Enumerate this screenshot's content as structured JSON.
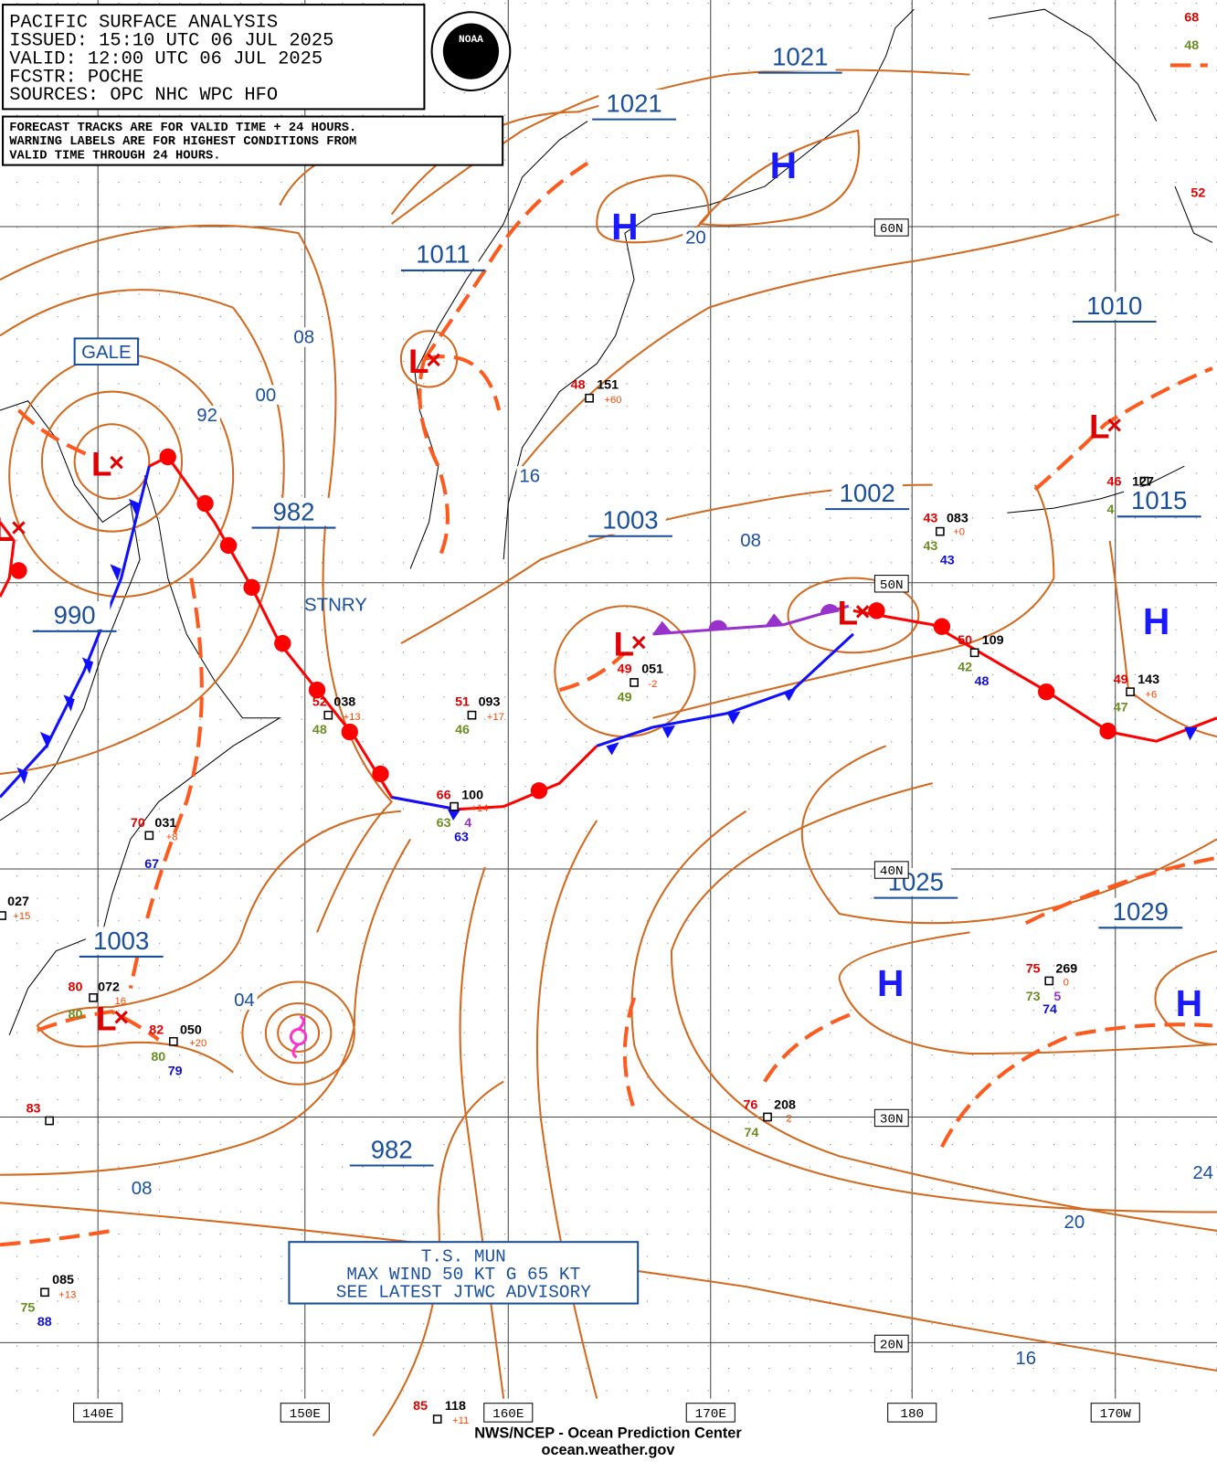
{
  "header": {
    "lines": [
      "PACIFIC SURFACE ANALYSIS",
      "ISSUED: 15:10 UTC 06 JUL 2025",
      "VALID:  12:00 UTC 06 JUL 2025",
      "FCSTR:  POCHE",
      "SOURCES: OPC NHC WPC HFO"
    ],
    "logo": "NOAA"
  },
  "note": [
    "FORECAST TRACKS ARE FOR VALID TIME + 24 HOURS.",
    "WARNING LABELS ARE FOR HIGHEST CONDITIONS FROM",
    "VALID TIME THROUGH 24 HOURS."
  ],
  "pressure_labels": [
    "1021",
    "1021",
    "1011",
    "1010",
    "982",
    "1002",
    "1003",
    "1015",
    "990",
    "1025",
    "1029",
    "1003",
    "982"
  ],
  "isobar_labels": [
    "08",
    "00",
    "92",
    "16",
    "08",
    "20",
    "04",
    "08",
    "20",
    "16",
    "24"
  ],
  "highs": [
    "H",
    "H",
    "H",
    "H",
    "H"
  ],
  "lows": [
    "L",
    "L",
    "L",
    "L",
    "L",
    "L",
    "L"
  ],
  "warnings": {
    "gale": "GALE",
    "stationary": "STNRY"
  },
  "grid_labels": {
    "longitude": [
      "140E",
      "150E",
      "160E",
      "170E",
      "180",
      "170W"
    ],
    "latitude": [
      "60N",
      "50N",
      "40N",
      "30N",
      "20N"
    ]
  },
  "stations": [
    [
      "48",
      "151",
      "+60"
    ],
    [
      "52",
      "038",
      "+13",
      "48"
    ],
    [
      "51",
      "093",
      "+17",
      "46"
    ],
    [
      "49",
      "051",
      "-2",
      "49"
    ],
    [
      "43",
      "083",
      "+0",
      "43",
      "43"
    ],
    [
      "50",
      "109",
      "42",
      "48"
    ],
    [
      "49",
      "143",
      "+6",
      "47"
    ],
    [
      "46",
      "127",
      "4"
    ],
    [
      "66",
      "100",
      "+14",
      "63",
      "4",
      "63"
    ],
    [
      "70",
      "031",
      "+8",
      "67"
    ],
    [
      "027",
      "+15"
    ],
    [
      "80",
      "072",
      "16",
      "80"
    ],
    [
      "82",
      "050",
      "+20",
      "80",
      "79"
    ],
    [
      "83"
    ],
    [
      "085",
      "+13",
      "75",
      "88"
    ],
    [
      "76",
      "208",
      "2",
      "74"
    ],
    [
      "75",
      "269",
      "0",
      "73",
      "5",
      "74"
    ],
    [
      "85",
      "118",
      "+11"
    ],
    [
      "68",
      "48"
    ],
    [
      "52"
    ]
  ],
  "storm_box": [
    "T.S. MUN",
    "MAX WIND 50 KT G 65 KT",
    "SEE LATEST JTWC ADVISORY"
  ],
  "footer": [
    "NWS/NCEP - Ocean Prediction Center",
    "ocean.weather.gov"
  ]
}
